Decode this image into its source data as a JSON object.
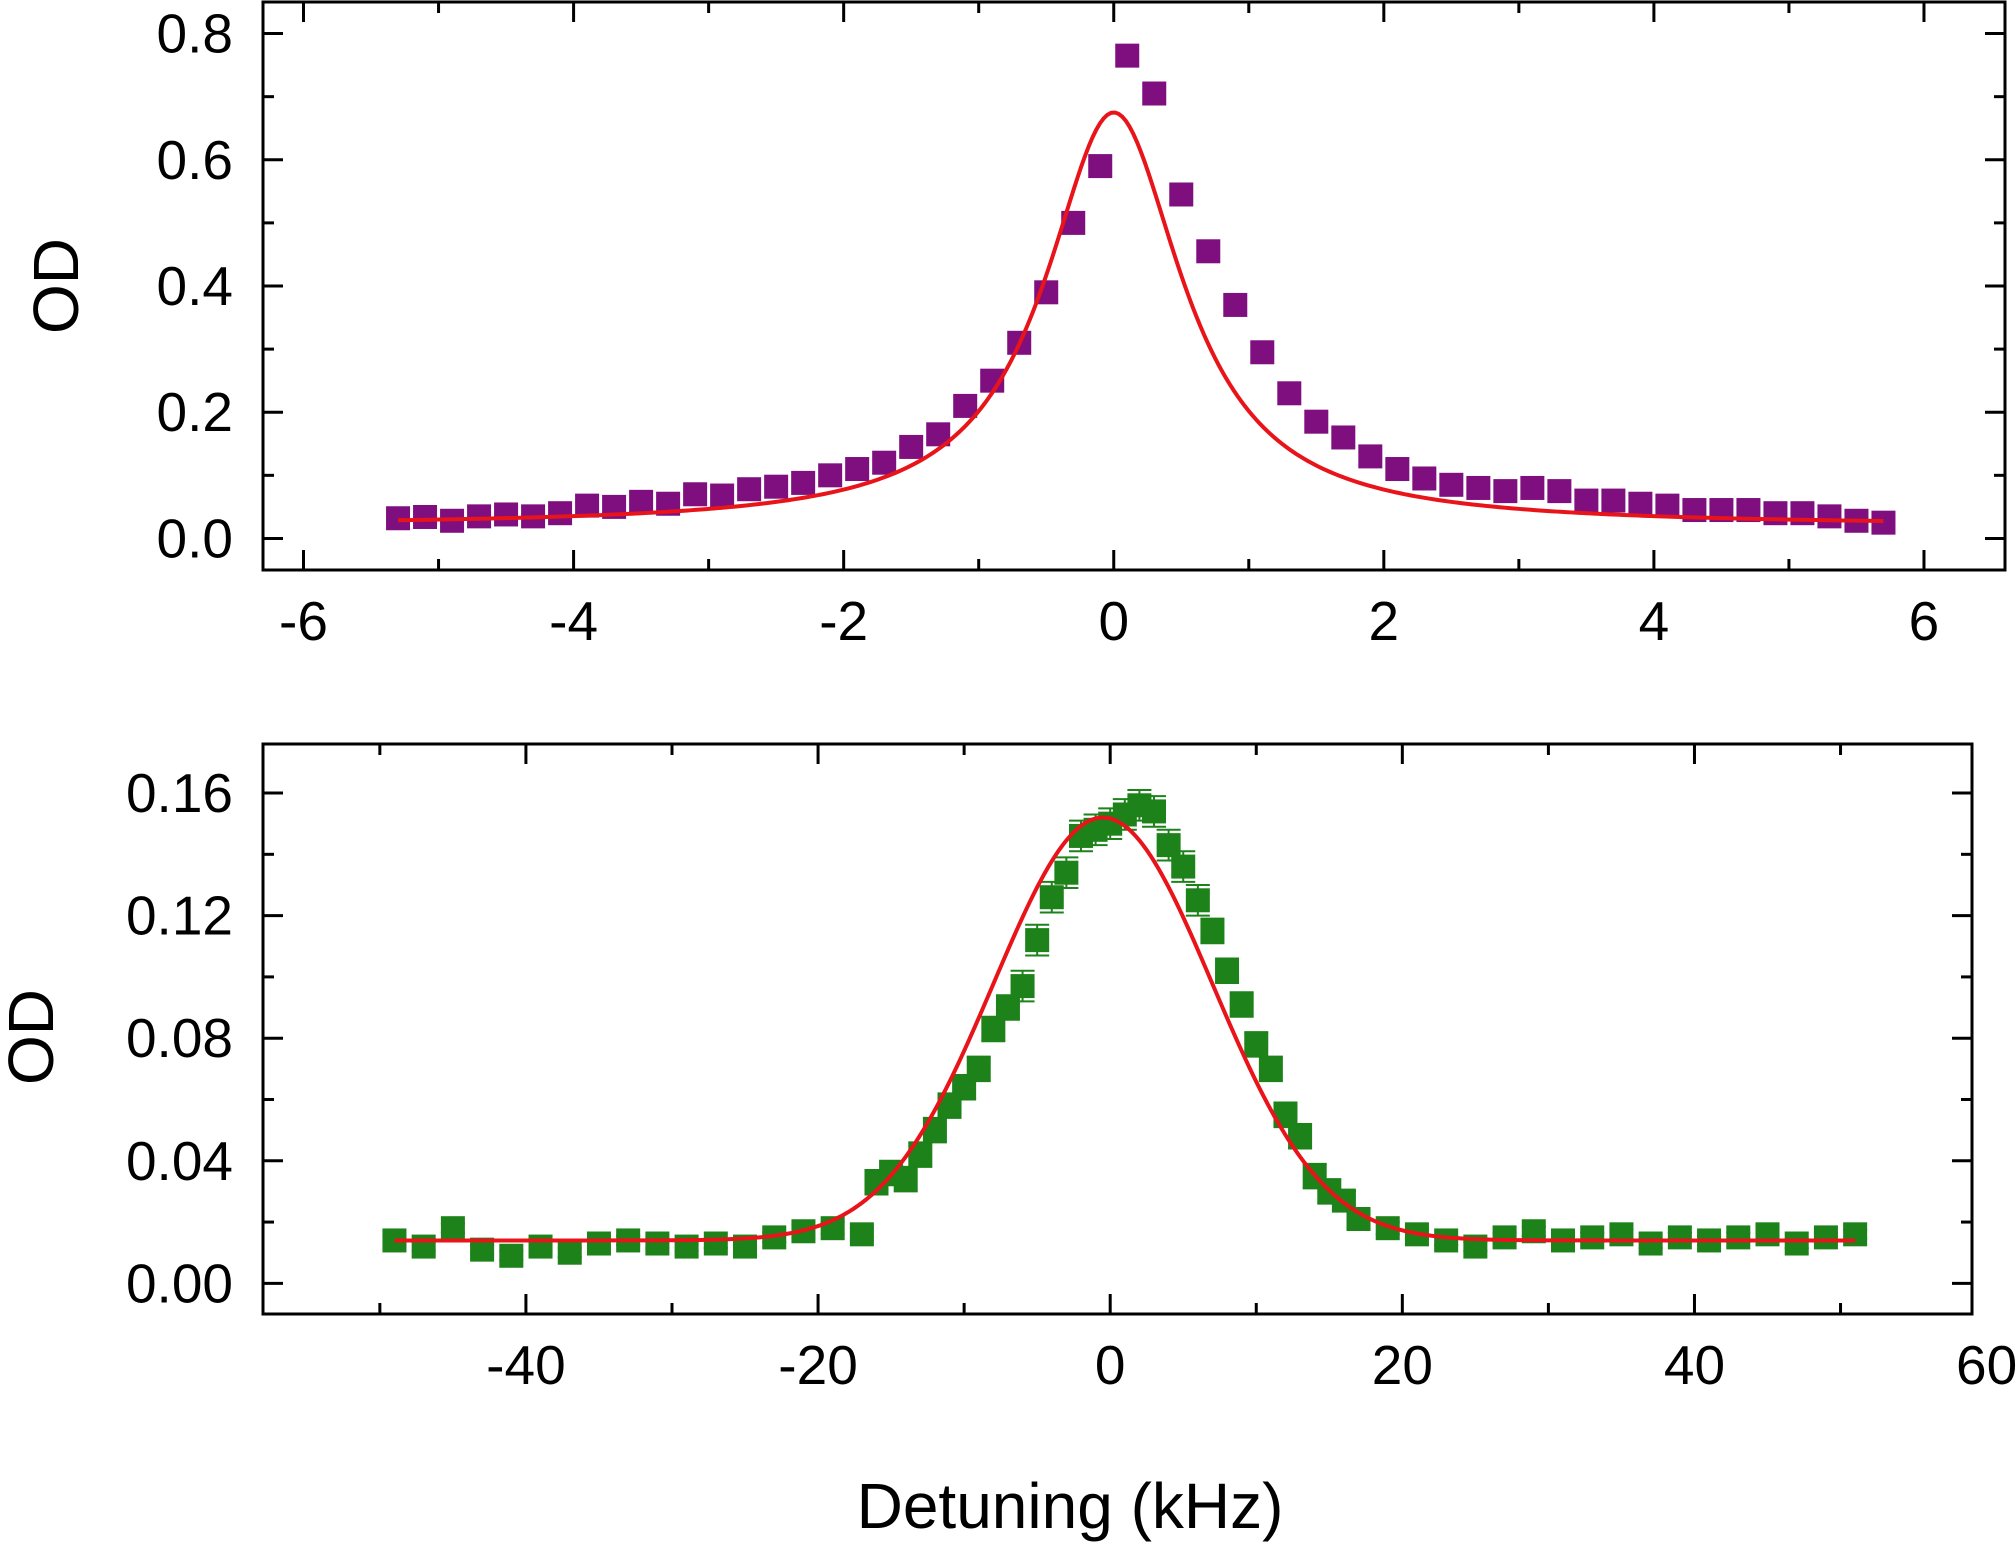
{
  "figure": {
    "xlabel": "Detuning (kHz)"
  },
  "chart_data": [
    {
      "type": "scatter",
      "title": "",
      "xlabel": "",
      "ylabel": "OD",
      "xlim": [
        -6.3,
        6.6
      ],
      "ylim": [
        -0.05,
        0.85
      ],
      "xticks": [
        -6,
        -4,
        -2,
        0,
        2,
        4,
        6
      ],
      "xtick_labels": [
        "-6",
        "-4",
        "-2",
        "0",
        "2",
        "4",
        "6"
      ],
      "yticks": [
        0.0,
        0.2,
        0.4,
        0.6,
        0.8
      ],
      "ytick_labels": [
        "0.0",
        "0.2",
        "0.4",
        "0.6",
        "0.8"
      ],
      "grid": false,
      "series": [
        {
          "marker": "square",
          "color": "#7f0f7f",
          "x": [
            -5.3,
            -5.1,
            -4.9,
            -4.7,
            -4.5,
            -4.3,
            -4.1,
            -3.9,
            -3.7,
            -3.5,
            -3.3,
            -3.1,
            -2.9,
            -2.7,
            -2.5,
            -2.3,
            -2.1,
            -1.9,
            -1.7,
            -1.5,
            -1.3,
            -1.1,
            -0.9,
            -0.7,
            -0.5,
            -0.3,
            -0.1,
            0.1,
            0.3,
            0.5,
            0.7,
            0.9,
            1.1,
            1.3,
            1.5,
            1.7,
            1.9,
            2.1,
            2.3,
            2.5,
            2.7,
            2.9,
            3.1,
            3.3,
            3.5,
            3.7,
            3.9,
            4.1,
            4.3,
            4.5,
            4.7,
            4.9,
            5.1,
            5.3,
            5.5,
            5.7
          ],
          "y": [
            0.032,
            0.034,
            0.028,
            0.035,
            0.038,
            0.035,
            0.04,
            0.052,
            0.05,
            0.058,
            0.055,
            0.07,
            0.068,
            0.078,
            0.082,
            0.088,
            0.1,
            0.11,
            0.12,
            0.145,
            0.165,
            0.21,
            0.25,
            0.31,
            0.39,
            0.5,
            0.59,
            0.765,
            0.705,
            0.545,
            0.455,
            0.37,
            0.295,
            0.23,
            0.185,
            0.16,
            0.13,
            0.11,
            0.095,
            0.085,
            0.08,
            0.075,
            0.08,
            0.075,
            0.06,
            0.06,
            0.055,
            0.052,
            0.045,
            0.045,
            0.045,
            0.04,
            0.04,
            0.035,
            0.028,
            0.025
          ]
        }
      ],
      "fit": {
        "color": "#e8141a",
        "x_range": [
          -5.3,
          5.7
        ],
        "model": "lorentzian",
        "center": 0.0,
        "amplitude": 0.655,
        "hwhm": 0.62,
        "offset": 0.02
      }
    },
    {
      "type": "scatter",
      "title": "",
      "xlabel": "",
      "ylabel": "OD",
      "xlim": [
        -58.0,
        59.0
      ],
      "ylim": [
        -0.01,
        0.176
      ],
      "xticks": [
        -40,
        -20,
        0,
        20,
        40,
        60
      ],
      "xtick_labels": [
        "-40",
        "-20",
        "0",
        "20",
        "40",
        "60"
      ],
      "yticks": [
        0.0,
        0.04,
        0.08,
        0.12,
        0.16
      ],
      "ytick_labels": [
        "0.00",
        "0.04",
        "0.08",
        "0.12",
        "0.16"
      ],
      "grid": false,
      "series": [
        {
          "marker": "square",
          "color": "#1c8219",
          "error_bars": true,
          "x": [
            -49,
            -47,
            -45,
            -43,
            -41,
            -39,
            -37,
            -35,
            -33,
            -31,
            -29,
            -27,
            -25,
            -23,
            -21,
            -19,
            -17,
            -16,
            -15,
            -14,
            -13,
            -12,
            -11,
            -10,
            -9,
            -8,
            -7,
            -6,
            -5,
            -4,
            -3,
            -2,
            -1,
            0,
            1,
            2,
            3,
            4,
            5,
            6,
            7,
            8,
            9,
            10,
            11,
            12,
            13,
            14,
            15,
            16,
            17,
            19,
            21,
            23,
            25,
            27,
            29,
            31,
            33,
            35,
            37,
            39,
            41,
            43,
            45,
            47,
            49,
            51
          ],
          "y": [
            0.014,
            0.012,
            0.018,
            0.011,
            0.009,
            0.012,
            0.01,
            0.013,
            0.014,
            0.013,
            0.012,
            0.013,
            0.012,
            0.015,
            0.017,
            0.018,
            0.016,
            0.033,
            0.036,
            0.034,
            0.042,
            0.05,
            0.058,
            0.064,
            0.07,
            0.083,
            0.09,
            0.097,
            0.112,
            0.126,
            0.134,
            0.146,
            0.148,
            0.15,
            0.153,
            0.156,
            0.154,
            0.143,
            0.136,
            0.125,
            0.115,
            0.102,
            0.091,
            0.078,
            0.07,
            0.055,
            0.048,
            0.035,
            0.03,
            0.027,
            0.021,
            0.018,
            0.016,
            0.014,
            0.012,
            0.015,
            0.017,
            0.014,
            0.015,
            0.016,
            0.013,
            0.015,
            0.014,
            0.015,
            0.016,
            0.013,
            0.015,
            0.016
          ],
          "err": [
            0.0015,
            0.0015,
            0.0015,
            0.0015,
            0.0015,
            0.0015,
            0.0015,
            0.0015,
            0.0015,
            0.0015,
            0.0015,
            0.0015,
            0.0015,
            0.0015,
            0.002,
            0.002,
            0.002,
            0.004,
            0.004,
            0.004,
            0.004,
            0.004,
            0.004,
            0.004,
            0.004,
            0.004,
            0.004,
            0.005,
            0.005,
            0.005,
            0.005,
            0.005,
            0.005,
            0.005,
            0.005,
            0.005,
            0.005,
            0.005,
            0.005,
            0.005,
            0.004,
            0.004,
            0.004,
            0.004,
            0.004,
            0.004,
            0.004,
            0.004,
            0.004,
            0.003,
            0.003,
            0.002,
            0.0015,
            0.0015,
            0.0015,
            0.0015,
            0.0015,
            0.0015,
            0.0015,
            0.0015,
            0.0015,
            0.0015,
            0.0015,
            0.0015,
            0.0015,
            0.0015,
            0.0015,
            0.0015
          ]
        }
      ],
      "fit": {
        "color": "#e8141a",
        "x_range": [
          -49,
          51
        ],
        "model": "gaussian",
        "center": -0.5,
        "amplitude": 0.138,
        "sigma": 7.5,
        "offset": 0.014
      }
    }
  ]
}
